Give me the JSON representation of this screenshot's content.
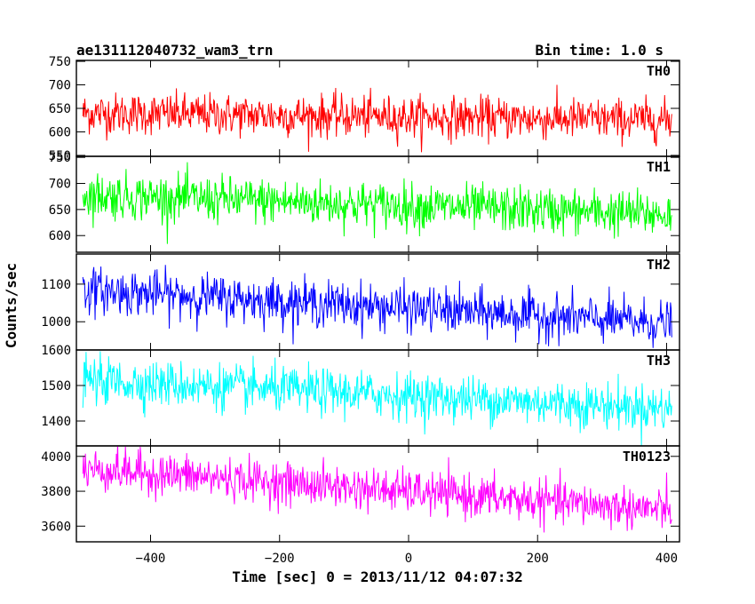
{
  "header": {
    "title": "ae131112040732_wam3_trn",
    "bin_time": "Bin time: 1.0 s"
  },
  "chart_data": {
    "type": "line",
    "xlabel": "Time [sec] 0 = 2013/11/12 04:07:32",
    "ylabel": "Counts/sec",
    "xlim": [
      -515,
      420
    ],
    "x_ticks": [
      -400,
      -200,
      0,
      200,
      400
    ],
    "x_range_data": [
      -505,
      408
    ],
    "bin_time_s": 1.0,
    "panels": [
      {
        "name": "TH0",
        "color": "#ff0000",
        "ylim": [
          548,
          752
        ],
        "y_ticks": [
          550,
          600,
          650,
          700,
          750
        ],
        "trend_start": 640,
        "trend_end": 625,
        "noise": 22,
        "points": [
          [
            -505,
            640
          ],
          [
            -400,
            638
          ],
          [
            -300,
            637
          ],
          [
            -200,
            633
          ],
          [
            -100,
            632
          ],
          [
            0,
            630
          ],
          [
            100,
            628
          ],
          [
            200,
            627
          ],
          [
            300,
            626
          ],
          [
            408,
            625
          ]
        ]
      },
      {
        "name": "TH1",
        "color": "#00ff00",
        "ylim": [
          568,
          752
        ],
        "y_ticks": [
          600,
          650,
          700,
          750
        ],
        "trend_start": 678,
        "trend_end": 640,
        "noise": 22,
        "points": [
          [
            -505,
            678
          ],
          [
            -400,
            674
          ],
          [
            -300,
            670
          ],
          [
            -200,
            665
          ],
          [
            -100,
            661
          ],
          [
            0,
            657
          ],
          [
            100,
            652
          ],
          [
            200,
            648
          ],
          [
            300,
            644
          ],
          [
            408,
            640
          ]
        ]
      },
      {
        "name": "TH2",
        "color": "#0000ff",
        "ylim": [
          925,
          1180
        ],
        "y_ticks": [
          1000,
          1100
        ],
        "trend_start": 1085,
        "trend_end": 995,
        "noise": 30,
        "points": [
          [
            -505,
            1085
          ],
          [
            -400,
            1075
          ],
          [
            -300,
            1065
          ],
          [
            -200,
            1055
          ],
          [
            -100,
            1045
          ],
          [
            0,
            1035
          ],
          [
            100,
            1025
          ],
          [
            200,
            1015
          ],
          [
            300,
            1005
          ],
          [
            408,
            995
          ]
        ]
      },
      {
        "name": "TH3",
        "color": "#00ffff",
        "ylim": [
          1330,
          1600
        ],
        "y_ticks": [
          1400,
          1500,
          1600
        ],
        "trend_start": 1515,
        "trend_end": 1435,
        "noise": 32,
        "points": [
          [
            -505,
            1515
          ],
          [
            -400,
            1506
          ],
          [
            -300,
            1497
          ],
          [
            -200,
            1488
          ],
          [
            -100,
            1479
          ],
          [
            0,
            1470
          ],
          [
            100,
            1461
          ],
          [
            200,
            1452
          ],
          [
            300,
            1443
          ],
          [
            408,
            1435
          ]
        ]
      },
      {
        "name": "TH0123",
        "color": "#ff00ff",
        "ylim": [
          3510,
          4060
        ],
        "y_ticks": [
          3600,
          3800,
          4000
        ],
        "trend_start": 3930,
        "trend_end": 3690,
        "noise": 60,
        "points": [
          [
            -505,
            3930
          ],
          [
            -400,
            3903
          ],
          [
            -300,
            3877
          ],
          [
            -200,
            3850
          ],
          [
            -100,
            3823
          ],
          [
            0,
            3797
          ],
          [
            100,
            3770
          ],
          [
            200,
            3743
          ],
          [
            300,
            3717
          ],
          [
            408,
            3690
          ]
        ]
      }
    ]
  }
}
